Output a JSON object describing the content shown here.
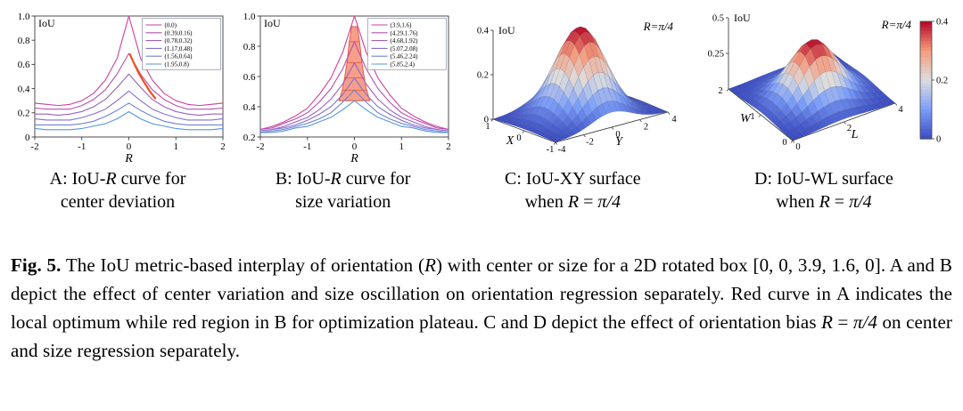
{
  "panels": [
    {
      "id": "A",
      "caption_line1": [
        {
          "t": "A: IoU-"
        },
        {
          "t": "R",
          "i": true
        },
        {
          "t": " curve for"
        }
      ],
      "caption_line2": [
        {
          "t": "center deviation"
        }
      ]
    },
    {
      "id": "B",
      "caption_line1": [
        {
          "t": "B: IoU-"
        },
        {
          "t": "R",
          "i": true
        },
        {
          "t": " curve for"
        }
      ],
      "caption_line2": [
        {
          "t": "size variation"
        }
      ]
    },
    {
      "id": "C",
      "caption_line1": [
        {
          "t": "C: IoU-XY surface"
        }
      ],
      "caption_line2": [
        {
          "t": "when "
        },
        {
          "t": "R",
          "i": true
        },
        {
          "t": " = "
        },
        {
          "t": "π/4",
          "i": true
        }
      ]
    },
    {
      "id": "D",
      "caption_line1": [
        {
          "t": "D: IoU-WL surface"
        }
      ],
      "caption_line2": [
        {
          "t": "when "
        },
        {
          "t": "R",
          "i": true
        },
        {
          "t": " = "
        },
        {
          "t": "π/4",
          "i": true
        }
      ]
    }
  ],
  "figure_caption": [
    {
      "t": "Fig. 5.",
      "b": true
    },
    {
      "t": " The IoU metric-based interplay of orientation ("
    },
    {
      "t": "R",
      "i": true
    },
    {
      "t": ") with center or size for a 2D rotated box [0, 0, 3.9, 1.6, 0]. A and B depict the effect of center variation and size oscillation on orientation regression separately. Red curve in A indicates the local optimum while red region in B for optimization plateau. C and D depict the effect of orientation bias "
    },
    {
      "t": "R",
      "i": true
    },
    {
      "t": " = "
    },
    {
      "t": "π/4",
      "i": true
    },
    {
      "t": " on center and size regression separately."
    }
  ],
  "chart_data": [
    {
      "panel": "A",
      "type": "line",
      "title": "IoU-R curve for center deviation",
      "xlabel": "R",
      "ylabel": "IoU",
      "xlim": [
        -2,
        2
      ],
      "ylim": [
        0,
        1
      ],
      "xticks": [
        -2,
        -1,
        0,
        1,
        2
      ],
      "xtick_labels": [
        "-2",
        "-1",
        "0",
        "1",
        "2"
      ],
      "yticks": [
        0,
        0.2,
        0.4,
        0.6,
        0.8,
        1
      ],
      "ytick_labels": [
        "0",
        "0.2",
        "0.4",
        "0.6",
        "0.8",
        "1.0"
      ],
      "legend_position": "top-right",
      "x": [
        -2,
        -1.75,
        -1.5,
        -1.25,
        -1,
        -0.75,
        -0.5,
        -0.25,
        0,
        0.25,
        0.5,
        0.75,
        1,
        1.25,
        1.5,
        1.75,
        2
      ],
      "series": [
        {
          "name": "(0,0)",
          "color": "#cf3f9a",
          "values": [
            0.28,
            0.27,
            0.26,
            0.27,
            0.3,
            0.36,
            0.47,
            0.65,
            1.0,
            0.65,
            0.47,
            0.36,
            0.3,
            0.27,
            0.26,
            0.27,
            0.28
          ]
        },
        {
          "name": "(0.39,0.16)",
          "color": "#b750ac",
          "values": [
            0.24,
            0.23,
            0.23,
            0.23,
            0.26,
            0.31,
            0.39,
            0.52,
            0.69,
            0.52,
            0.39,
            0.31,
            0.26,
            0.23,
            0.23,
            0.23,
            0.24
          ]
        },
        {
          "name": "(0.78,0.32)",
          "color": "#9e60bd",
          "values": [
            0.19,
            0.19,
            0.18,
            0.19,
            0.21,
            0.25,
            0.31,
            0.41,
            0.52,
            0.41,
            0.31,
            0.25,
            0.21,
            0.19,
            0.18,
            0.19,
            0.19
          ]
        },
        {
          "name": "(1.17,0.48)",
          "color": "#8571cb",
          "values": [
            0.15,
            0.14,
            0.14,
            0.14,
            0.16,
            0.19,
            0.23,
            0.3,
            0.38,
            0.3,
            0.23,
            0.19,
            0.16,
            0.14,
            0.14,
            0.14,
            0.15
          ]
        },
        {
          "name": "(1.56,0.64)",
          "color": "#6d83d7",
          "values": [
            0.1,
            0.1,
            0.1,
            0.1,
            0.11,
            0.13,
            0.17,
            0.22,
            0.28,
            0.22,
            0.17,
            0.13,
            0.11,
            0.1,
            0.1,
            0.1,
            0.1
          ]
        },
        {
          "name": "(1.95,0.8)",
          "color": "#5596e2",
          "values": [
            0.07,
            0.06,
            0.06,
            0.06,
            0.07,
            0.09,
            0.11,
            0.15,
            0.21,
            0.15,
            0.11,
            0.09,
            0.07,
            0.06,
            0.06,
            0.06,
            0.07
          ]
        }
      ],
      "red_curve": {
        "label": "local optimum",
        "color": "#f2501f",
        "points": [
          [
            0.02,
            0.685
          ],
          [
            0.12,
            0.6
          ],
          [
            0.22,
            0.52
          ],
          [
            0.33,
            0.45
          ],
          [
            0.44,
            0.38
          ],
          [
            0.56,
            0.32
          ]
        ]
      }
    },
    {
      "panel": "B",
      "type": "line",
      "title": "IoU-R curve for size variation",
      "xlabel": "R",
      "ylabel": "IoU",
      "xlim": [
        -2,
        2
      ],
      "ylim": [
        0.2,
        1
      ],
      "xticks": [
        -2,
        -1,
        0,
        1,
        2
      ],
      "xtick_labels": [
        "-2",
        "-1",
        "0",
        "1",
        "2"
      ],
      "yticks": [
        0.2,
        0.4,
        0.6,
        0.8,
        1
      ],
      "ytick_labels": [
        "0.2",
        "0.4",
        "0.6",
        "0.8",
        "1.0"
      ],
      "legend_position": "top-right",
      "x": [
        -2,
        -1.75,
        -1.5,
        -1.25,
        -1,
        -0.75,
        -0.5,
        -0.25,
        0,
        0.25,
        0.5,
        0.75,
        1,
        1.25,
        1.5,
        1.75,
        2
      ],
      "series": [
        {
          "name": "(3.9,1.6)",
          "color": "#cf3f9a",
          "values": [
            0.25,
            0.27,
            0.3,
            0.34,
            0.39,
            0.48,
            0.59,
            0.76,
            1.0,
            0.76,
            0.59,
            0.48,
            0.39,
            0.34,
            0.3,
            0.27,
            0.25
          ]
        },
        {
          "name": "(4.29,1.76)",
          "color": "#b750ac",
          "values": [
            0.25,
            0.26,
            0.29,
            0.32,
            0.36,
            0.43,
            0.52,
            0.65,
            0.83,
            0.65,
            0.52,
            0.43,
            0.36,
            0.32,
            0.29,
            0.26,
            0.25
          ]
        },
        {
          "name": "(4.68,1.92)",
          "color": "#9e60bd",
          "values": [
            0.24,
            0.25,
            0.27,
            0.3,
            0.33,
            0.38,
            0.45,
            0.55,
            0.69,
            0.55,
            0.45,
            0.38,
            0.33,
            0.3,
            0.27,
            0.25,
            0.24
          ]
        },
        {
          "name": "(5.07,2.08)",
          "color": "#8571cb",
          "values": [
            0.24,
            0.25,
            0.26,
            0.28,
            0.31,
            0.35,
            0.4,
            0.48,
            0.59,
            0.48,
            0.4,
            0.35,
            0.31,
            0.28,
            0.26,
            0.25,
            0.24
          ]
        },
        {
          "name": "(5.46,2.24)",
          "color": "#6d83d7",
          "values": [
            0.23,
            0.24,
            0.25,
            0.27,
            0.29,
            0.32,
            0.36,
            0.43,
            0.51,
            0.43,
            0.36,
            0.32,
            0.29,
            0.27,
            0.25,
            0.24,
            0.23
          ]
        },
        {
          "name": "(5.85,2.4)",
          "color": "#5596e2",
          "values": [
            0.23,
            0.23,
            0.24,
            0.26,
            0.27,
            0.3,
            0.33,
            0.38,
            0.44,
            0.38,
            0.33,
            0.3,
            0.27,
            0.26,
            0.24,
            0.23,
            0.23
          ]
        }
      ],
      "red_region": {
        "label": "optimization plateau",
        "fill": "#f5937d",
        "stroke": "#e0442a",
        "polygon": [
          [
            -0.33,
            0.44
          ],
          [
            -0.26,
            0.51
          ],
          [
            -0.21,
            0.59
          ],
          [
            -0.16,
            0.69
          ],
          [
            -0.11,
            0.83
          ],
          [
            -0.06,
            0.93
          ],
          [
            0.06,
            0.93
          ],
          [
            0.11,
            0.83
          ],
          [
            0.16,
            0.69
          ],
          [
            0.21,
            0.59
          ],
          [
            0.26,
            0.51
          ],
          [
            0.33,
            0.44
          ]
        ],
        "lines": [
          [
            -0.26,
            0.51,
            0.26,
            0.51
          ],
          [
            -0.21,
            0.59,
            0.21,
            0.59
          ],
          [
            -0.16,
            0.69,
            0.16,
            0.69
          ],
          [
            -0.11,
            0.83,
            0.11,
            0.83
          ]
        ]
      }
    },
    {
      "panel": "C",
      "type": "surface",
      "title": "IoU-XY surface when R=π/4",
      "xlabel": "X",
      "ylabel": "Y",
      "zlabel": "IoU",
      "annotation": "R=π/4",
      "x_range": [
        -1,
        1
      ],
      "y_range": [
        -4,
        4
      ],
      "z_range": [
        0,
        0.4
      ],
      "x_ticks": [
        1,
        0,
        -1
      ],
      "x_tick_labels": [
        "1",
        "0",
        "-1"
      ],
      "y_ticks": [
        -4,
        -2,
        0,
        2,
        4
      ],
      "y_tick_labels": [
        "-4",
        "-2",
        "0",
        "2",
        "4"
      ],
      "z_ticks": [
        0,
        0.2,
        0.4
      ],
      "z_tick_labels": [
        "0",
        "0.2",
        "0.4"
      ],
      "peak": 0.4,
      "center": [
        0,
        0
      ],
      "sigma": [
        0.75,
        2.0
      ],
      "color_max": 0.4
    },
    {
      "panel": "D",
      "type": "surface",
      "title": "IoU-WL surface when R=π/4",
      "xlabel": "W",
      "ylabel": "L",
      "zlabel": "IoU",
      "annotation": "R=π/4",
      "x_range": [
        0,
        2
      ],
      "y_range": [
        0,
        4
      ],
      "z_range": [
        0,
        0.5
      ],
      "x_ticks": [
        0,
        1,
        2
      ],
      "x_tick_labels": [
        "0",
        "1",
        "2"
      ],
      "y_ticks": [
        0,
        2,
        4
      ],
      "y_tick_labels": [
        "0",
        "2",
        "4"
      ],
      "z_ticks": [
        0.25,
        0.5
      ],
      "z_tick_labels": [
        "0.25",
        "0.5"
      ],
      "peak": 0.4,
      "center": [
        0.95,
        2.0
      ],
      "sigma": [
        0.55,
        1.15
      ],
      "color_max": 0.4,
      "colorbar": {
        "ticks": [
          0,
          0.2,
          0.4
        ],
        "labels": [
          "0",
          "0.2",
          "0.4"
        ],
        "min": 0,
        "max": 0.4
      }
    }
  ]
}
